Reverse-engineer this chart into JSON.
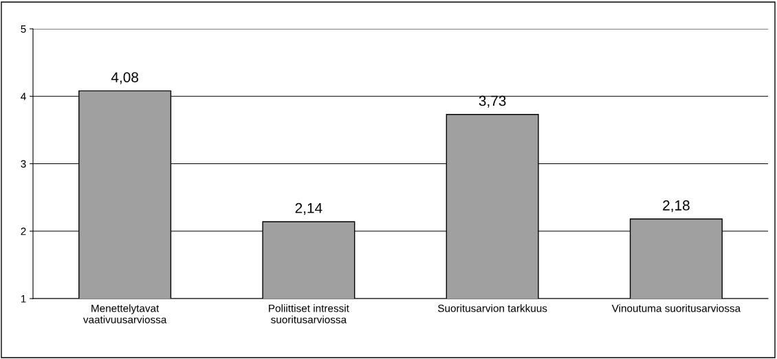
{
  "chart_data": {
    "type": "bar",
    "categories": [
      "Menettelytavat\nvaativuusarviossa",
      "Poliittiset intressit\nsuoritusarviossa",
      "Suoritusarvion tarkkuus",
      "Vinoutuma suoritusarviossa"
    ],
    "values": [
      4.08,
      2.14,
      3.73,
      2.18
    ],
    "value_labels": [
      "4,08",
      "2,14",
      "3,73",
      "2,18"
    ],
    "color": "#a0a0a0",
    "ylim": [
      1,
      5
    ],
    "yticks": [
      1,
      2,
      3,
      4,
      5
    ],
    "grid": "y",
    "legend": false
  }
}
